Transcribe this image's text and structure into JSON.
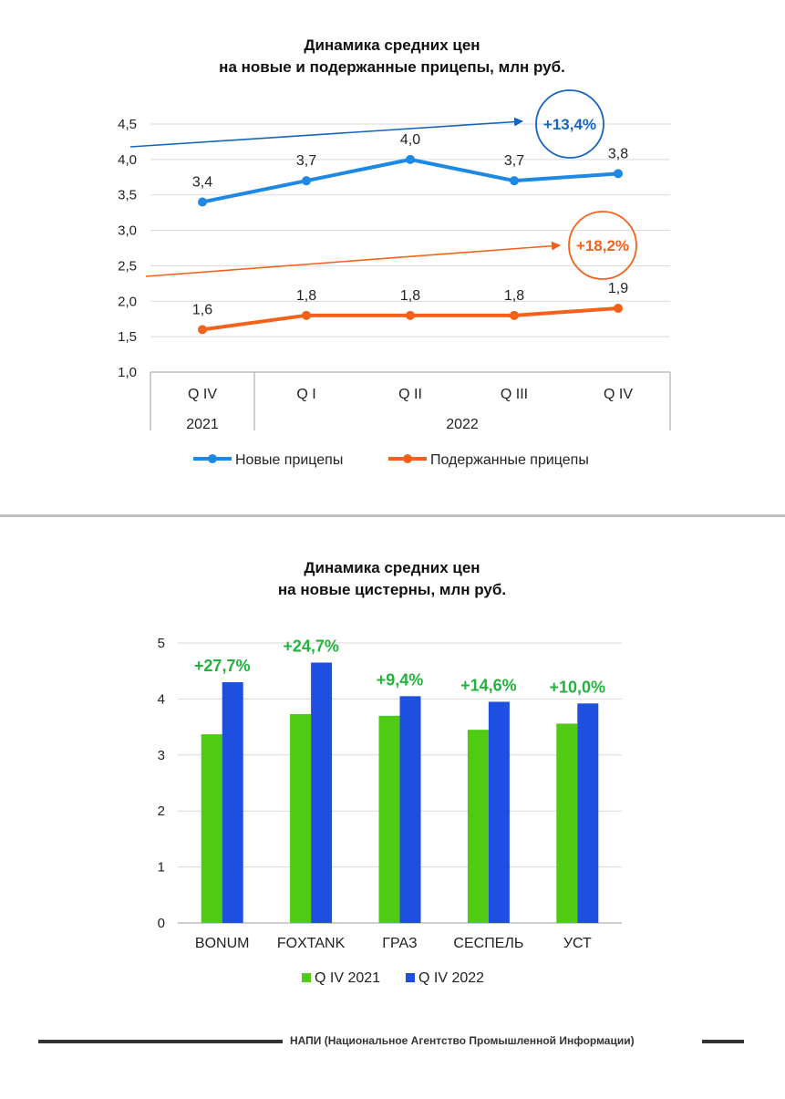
{
  "chart_data": [
    {
      "type": "line",
      "title": [
        "Динамика средних цен",
        "на новые и подержанные прицепы, млн руб."
      ],
      "categories": [
        "Q IV",
        "Q I",
        "Q II",
        "Q III",
        "Q IV"
      ],
      "years": [
        {
          "label": "2021",
          "span": 1
        },
        {
          "label": "2022",
          "span": 4
        }
      ],
      "ylim": [
        1.0,
        4.5
      ],
      "yticks": [
        "1,0",
        "1,5",
        "2,0",
        "2,5",
        "3,0",
        "3,5",
        "4,0",
        "4,5"
      ],
      "series": [
        {
          "name": "Новые прицепы",
          "color": "#1e88e5",
          "values": [
            3.4,
            3.7,
            4.0,
            3.7,
            3.8
          ],
          "labels": [
            "3,4",
            "3,7",
            "4,0",
            "3,7",
            "3,8"
          ]
        },
        {
          "name": "Подержанные прицепы",
          "color": "#f4621a",
          "values": [
            1.6,
            1.8,
            1.8,
            1.8,
            1.9
          ],
          "labels": [
            "1,6",
            "1,8",
            "1,8",
            "1,8",
            "1,9"
          ]
        }
      ],
      "annotations": [
        {
          "text": "+13,4%",
          "color": "#1565c0",
          "series": "Новые прицепы"
        },
        {
          "text": "+18,2%",
          "color": "#f4621a",
          "series": "Подержанные прицепы"
        }
      ]
    },
    {
      "type": "bar",
      "title": [
        "Динамика средних цен",
        "на новые цистерны, млн руб."
      ],
      "categories": [
        "BONUM",
        "FOXTANK",
        "ГРАЗ",
        "СЕСПЕЛЬ",
        "УСТ"
      ],
      "ylim": [
        0,
        5
      ],
      "yticks": [
        "0",
        "1",
        "2",
        "3",
        "4",
        "5"
      ],
      "series": [
        {
          "name": "Q IV 2021",
          "color": "#4ecb12",
          "values": [
            3.37,
            3.73,
            3.7,
            3.45,
            3.56
          ]
        },
        {
          "name": "Q IV 2022",
          "color": "#1f4fe0",
          "values": [
            4.3,
            4.65,
            4.05,
            3.95,
            3.92
          ]
        }
      ],
      "change_labels": [
        "+27,7%",
        "+24,7%",
        "+9,4%",
        "+14,6%",
        "+10,0%"
      ],
      "change_color": "#22b33c"
    }
  ],
  "footer": {
    "text": "НАПИ (Национальное Агентство Промышленной Информации)"
  }
}
